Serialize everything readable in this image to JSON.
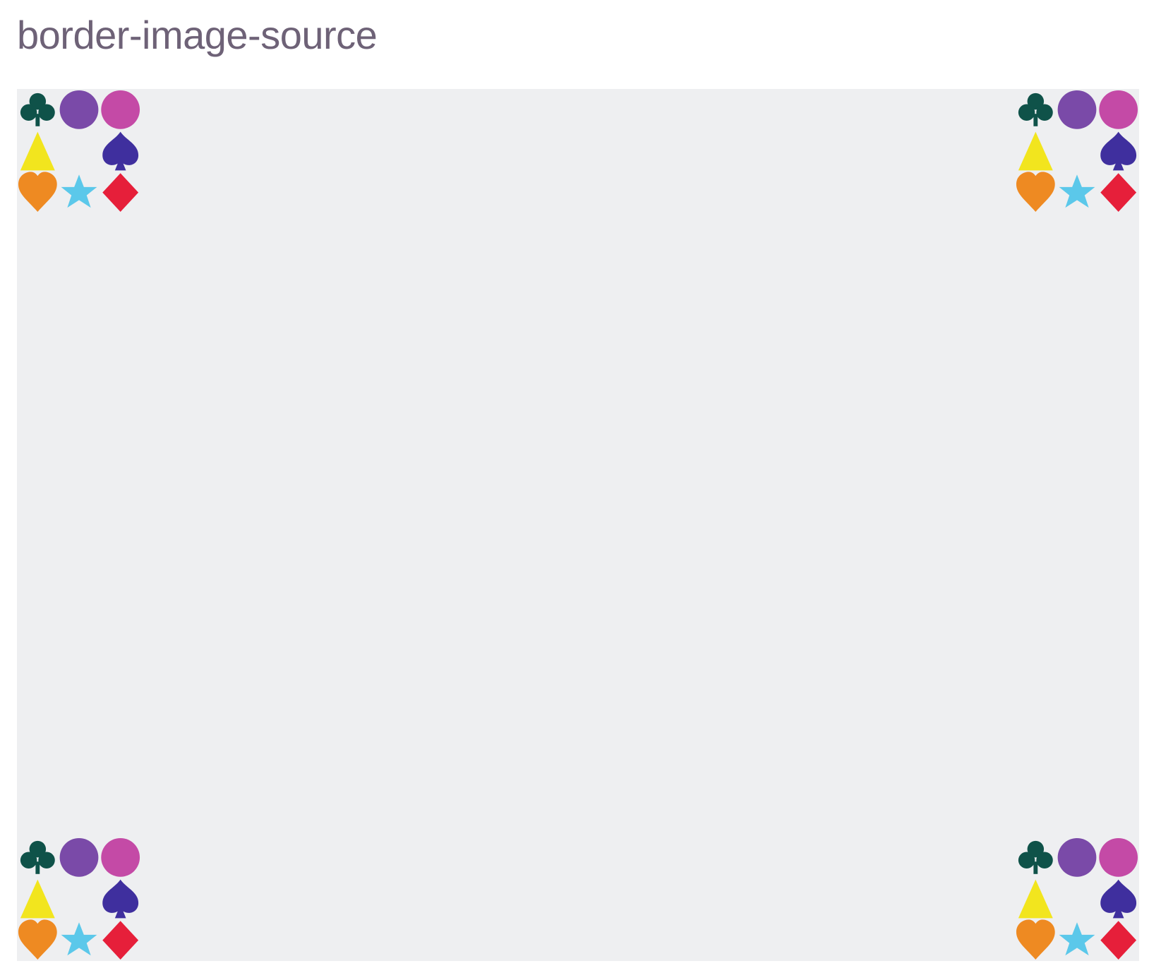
{
  "page": {
    "title": "border-image-source"
  },
  "demo": {
    "background_color": "#eeeff1",
    "corner_pattern": [
      "club-icon",
      "circle-icon",
      "circle-icon",
      "triangle-icon",
      "spade-icon",
      "heart-icon",
      "star-icon",
      "diamond-icon"
    ],
    "colors": {
      "club": "#0f5249",
      "circle_purple": "#7a4aa8",
      "circle_magenta": "#c44aa6",
      "triangle": "#f2e51e",
      "spade": "#3f2f9e",
      "heart": "#ee8a22",
      "star": "#5bc8ea",
      "diamond": "#e61f3a"
    }
  }
}
